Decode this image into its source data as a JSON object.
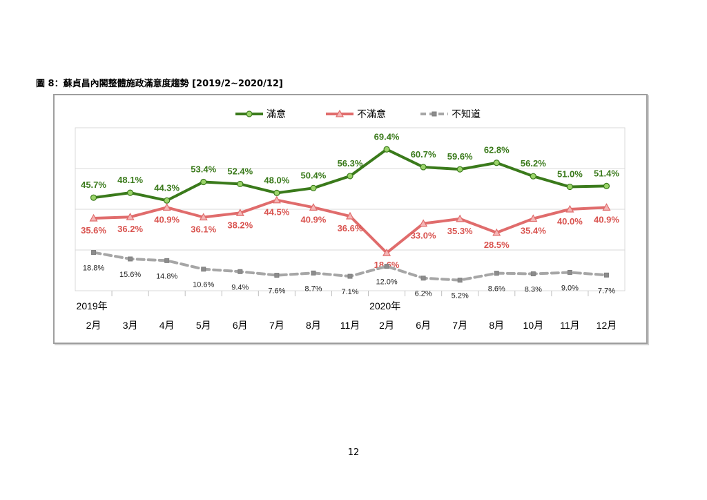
{
  "figure_title": "圖 8：蘇貞昌內閣整體施政滿意度趨勢  [2019/2~2020/12]",
  "page_number": "12",
  "chart_data": {
    "type": "line",
    "title": "",
    "year_labels": [
      {
        "label": "2019年",
        "category_index": 0
      },
      {
        "label": "2020年",
        "category_index": 8
      }
    ],
    "categories": [
      "2月",
      "3月",
      "4月",
      "5月",
      "6月",
      "7月",
      "8月",
      "11月",
      "2月",
      "6月",
      "7月",
      "8月",
      "10月",
      "11月",
      "12月"
    ],
    "legend_position": "top-center",
    "grid": true,
    "ylim": [
      0,
      80
    ],
    "series": [
      {
        "name": "滿意",
        "color": "#3a7a1b",
        "marker": "circle",
        "dashed": false,
        "label_color": "#3a7a1b",
        "label_bold": true,
        "values": [
          45.7,
          48.1,
          44.3,
          53.4,
          52.4,
          48.0,
          50.4,
          56.3,
          69.4,
          60.7,
          59.6,
          62.8,
          56.2,
          51.0,
          51.4
        ],
        "labels": [
          "45.7%",
          "48.1%",
          "44.3%",
          "53.4%",
          "52.4%",
          "48.0%",
          "50.4%",
          "56.3%",
          "69.4%",
          "60.7%",
          "59.6%",
          "62.8%",
          "56.2%",
          "51.0%",
          "51.4%"
        ]
      },
      {
        "name": "不滿意",
        "color": "#e06c6c",
        "marker": "triangle",
        "dashed": false,
        "label_color": "#d9534f",
        "label_bold": true,
        "values": [
          35.6,
          36.2,
          40.9,
          36.1,
          38.2,
          44.5,
          40.9,
          36.6,
          18.6,
          33.0,
          35.3,
          28.5,
          35.4,
          40.0,
          40.9
        ],
        "labels": [
          "35.6%",
          "36.2%",
          "40.9%",
          "36.1%",
          "38.2%",
          "44.5%",
          "40.9%",
          "36.6%",
          "18.6%",
          "33.0%",
          "35.3%",
          "28.5%",
          "35.4%",
          "40.0%",
          "40.9%"
        ]
      },
      {
        "name": "不知道",
        "color": "#a6a6a6",
        "marker": "square",
        "dashed": true,
        "label_color": "#222222",
        "label_bold": false,
        "values": [
          18.8,
          15.6,
          14.8,
          10.6,
          9.4,
          7.6,
          8.7,
          7.1,
          12.0,
          6.2,
          5.2,
          8.6,
          8.3,
          9.0,
          7.7
        ],
        "labels": [
          "18.8%",
          "15.6%",
          "14.8%",
          "10.6%",
          "9.4%",
          "7.6%",
          "8.7%",
          "7.1%",
          "12.0%",
          "6.2%",
          "5.2%",
          "8.6%",
          "8.3%",
          "9.0%",
          "7.7%"
        ]
      }
    ]
  }
}
